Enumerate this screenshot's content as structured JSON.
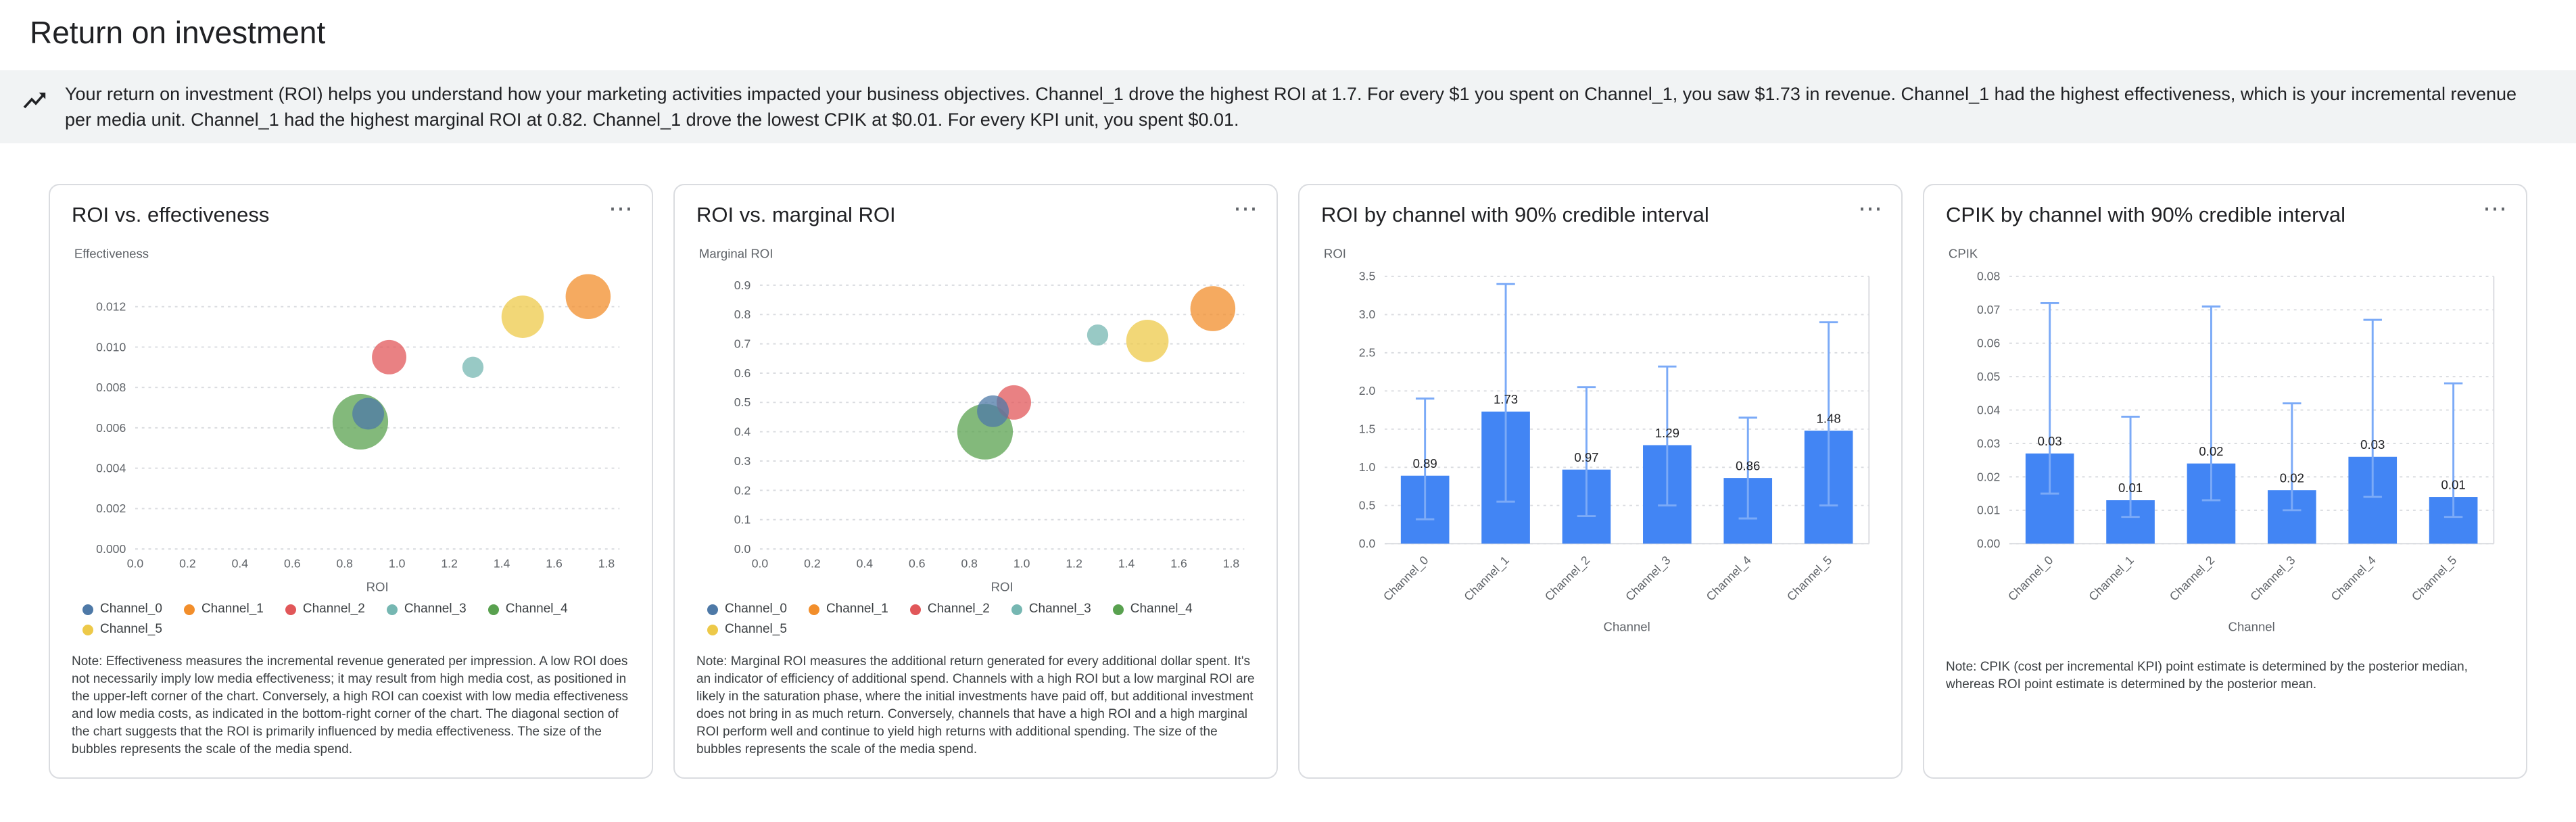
{
  "page": {
    "title": "Return on investment"
  },
  "icons": {
    "more": "⋯"
  },
  "insights_banner": {
    "icon": "insights-icon",
    "text": "Your return on investment (ROI) helps you understand how your marketing activities impacted your business objectives. Channel_1 drove the highest ROI at 1.7. For every $1 you spent on Channel_1, you saw $1.73 in revenue. Channel_1 had the highest effectiveness, which is your incremental revenue per media unit. Channel_1 had the highest marginal ROI at 0.82. Channel_1 drove the lowest CPIK at $0.01. For every KPI unit, you spent $0.01."
  },
  "palette": {
    "Channel_0": "#4E79A7",
    "Channel_1": "#F28E2B",
    "Channel_2": "#E15759",
    "Channel_3": "#76B7B2",
    "Channel_4": "#59A14F",
    "Channel_5": "#EDC949"
  },
  "bar_colors": {
    "bar": "#4285F4",
    "interval": "#7BAAF7"
  },
  "chart_data": [
    {
      "type": "scatter",
      "title": "ROI vs. effectiveness",
      "xlabel": "ROI",
      "ylabel": "Effectiveness",
      "xlim": [
        0,
        1.85
      ],
      "ylim": [
        0,
        0.0135
      ],
      "grid": "horizontal-dashed",
      "legend_position": "bottom",
      "xticks": [
        {
          "v": 0.0,
          "label": "0.0"
        },
        {
          "v": 0.2,
          "label": "0.2"
        },
        {
          "v": 0.4,
          "label": "0.4"
        },
        {
          "v": 0.6,
          "label": "0.6"
        },
        {
          "v": 0.8,
          "label": "0.8"
        },
        {
          "v": 1.0,
          "label": "1.0"
        },
        {
          "v": 1.2,
          "label": "1.2"
        },
        {
          "v": 1.4,
          "label": "1.4"
        },
        {
          "v": 1.6,
          "label": "1.6"
        },
        {
          "v": 1.8,
          "label": "1.8"
        }
      ],
      "yticks": [
        {
          "v": 0.0,
          "label": "0.000"
        },
        {
          "v": 0.002,
          "label": "0.002"
        },
        {
          "v": 0.004,
          "label": "0.004"
        },
        {
          "v": 0.006,
          "label": "0.006"
        },
        {
          "v": 0.008,
          "label": "0.008"
        },
        {
          "v": 0.01,
          "label": "0.010"
        },
        {
          "v": 0.012,
          "label": "0.012"
        }
      ],
      "points": [
        {
          "name": "Channel_0",
          "x": 0.89,
          "y": 0.0067,
          "size": 12
        },
        {
          "name": "Channel_1",
          "x": 1.73,
          "y": 0.0125,
          "size": 17
        },
        {
          "name": "Channel_2",
          "x": 0.97,
          "y": 0.0095,
          "size": 13
        },
        {
          "name": "Channel_3",
          "x": 1.29,
          "y": 0.009,
          "size": 8
        },
        {
          "name": "Channel_4",
          "x": 0.86,
          "y": 0.0063,
          "size": 21
        },
        {
          "name": "Channel_5",
          "x": 1.48,
          "y": 0.0115,
          "size": 16
        }
      ],
      "legend": [
        "Channel_0",
        "Channel_1",
        "Channel_2",
        "Channel_3",
        "Channel_4",
        "Channel_5"
      ],
      "note": "Note: Effectiveness measures the incremental revenue generated per impression. A low ROI does not necessarily imply low media effectiveness; it may result from high media cost, as positioned in the upper-left corner of the chart. Conversely, a high ROI can coexist with low media effectiveness and low media costs, as indicated in the bottom-right corner of the chart. The diagonal section of the chart suggests that the ROI is primarily influenced by media effectiveness. The size of the bubbles represents the scale of the media spend."
    },
    {
      "type": "scatter",
      "title": "ROI vs. marginal ROI",
      "xlabel": "ROI",
      "ylabel": "Marginal ROI",
      "xlim": [
        0,
        1.85
      ],
      "ylim": [
        0,
        0.93
      ],
      "grid": "horizontal-dashed",
      "legend_position": "bottom",
      "xticks": [
        {
          "v": 0.0,
          "label": "0.0"
        },
        {
          "v": 0.2,
          "label": "0.2"
        },
        {
          "v": 0.4,
          "label": "0.4"
        },
        {
          "v": 0.6,
          "label": "0.6"
        },
        {
          "v": 0.8,
          "label": "0.8"
        },
        {
          "v": 1.0,
          "label": "1.0"
        },
        {
          "v": 1.2,
          "label": "1.2"
        },
        {
          "v": 1.4,
          "label": "1.4"
        },
        {
          "v": 1.6,
          "label": "1.6"
        },
        {
          "v": 1.8,
          "label": "1.8"
        }
      ],
      "yticks": [
        {
          "v": 0.0,
          "label": "0.0"
        },
        {
          "v": 0.1,
          "label": "0.1"
        },
        {
          "v": 0.2,
          "label": "0.2"
        },
        {
          "v": 0.3,
          "label": "0.3"
        },
        {
          "v": 0.4,
          "label": "0.4"
        },
        {
          "v": 0.5,
          "label": "0.5"
        },
        {
          "v": 0.6,
          "label": "0.6"
        },
        {
          "v": 0.7,
          "label": "0.7"
        },
        {
          "v": 0.8,
          "label": "0.8"
        },
        {
          "v": 0.9,
          "label": "0.9"
        }
      ],
      "points": [
        {
          "name": "Channel_0",
          "x": 0.89,
          "y": 0.47,
          "size": 12
        },
        {
          "name": "Channel_1",
          "x": 1.73,
          "y": 0.82,
          "size": 17
        },
        {
          "name": "Channel_2",
          "x": 0.97,
          "y": 0.5,
          "size": 13
        },
        {
          "name": "Channel_3",
          "x": 1.29,
          "y": 0.73,
          "size": 8
        },
        {
          "name": "Channel_4",
          "x": 0.86,
          "y": 0.4,
          "size": 21
        },
        {
          "name": "Channel_5",
          "x": 1.48,
          "y": 0.71,
          "size": 16
        }
      ],
      "legend": [
        "Channel_0",
        "Channel_1",
        "Channel_2",
        "Channel_3",
        "Channel_4",
        "Channel_5"
      ],
      "note": "Note: Marginal ROI measures the additional return generated for every additional dollar spent. It's an indicator of efficiency of additional spend. Channels with a high ROI but a low marginal ROI are likely in the saturation phase, where the initial investments have paid off, but additional investment does not bring in as much return. Conversely, channels that have a high ROI and a high marginal ROI perform well and continue to yield high returns with additional spending. The size of the bubbles represents the scale of the media spend."
    },
    {
      "type": "bar",
      "title": "ROI by channel with 90% credible interval",
      "xlabel": "Channel",
      "ylabel": "ROI",
      "ylim": [
        0,
        3.5
      ],
      "grid": "horizontal-dashed",
      "yticks": [
        {
          "v": 0.0,
          "label": "0.0"
        },
        {
          "v": 0.5,
          "label": "0.5"
        },
        {
          "v": 1.0,
          "label": "1.0"
        },
        {
          "v": 1.5,
          "label": "1.5"
        },
        {
          "v": 2.0,
          "label": "2.0"
        },
        {
          "v": 2.5,
          "label": "2.5"
        },
        {
          "v": 3.0,
          "label": "3.0"
        },
        {
          "v": 3.5,
          "label": "3.5"
        }
      ],
      "categories": [
        "Channel_0",
        "Channel_1",
        "Channel_2",
        "Channel_3",
        "Channel_4",
        "Channel_5"
      ],
      "values": [
        0.89,
        1.73,
        0.97,
        1.29,
        0.86,
        1.48
      ],
      "labels": [
        "0.89",
        "1.73",
        "0.97",
        "1.29",
        "0.86",
        "1.48"
      ],
      "ci_low": [
        0.32,
        0.55,
        0.36,
        0.5,
        0.33,
        0.5
      ],
      "ci_high": [
        1.9,
        3.4,
        2.05,
        2.32,
        1.65,
        2.9
      ]
    },
    {
      "type": "bar",
      "title": "CPIK by channel with 90% credible interval",
      "xlabel": "Channel",
      "ylabel": "CPIK",
      "ylim": [
        0,
        0.08
      ],
      "grid": "horizontal-dashed",
      "yticks": [
        {
          "v": 0.0,
          "label": "0.00"
        },
        {
          "v": 0.01,
          "label": "0.01"
        },
        {
          "v": 0.02,
          "label": "0.02"
        },
        {
          "v": 0.03,
          "label": "0.03"
        },
        {
          "v": 0.04,
          "label": "0.04"
        },
        {
          "v": 0.05,
          "label": "0.05"
        },
        {
          "v": 0.06,
          "label": "0.06"
        },
        {
          "v": 0.07,
          "label": "0.07"
        },
        {
          "v": 0.08,
          "label": "0.08"
        }
      ],
      "categories": [
        "Channel_0",
        "Channel_1",
        "Channel_2",
        "Channel_3",
        "Channel_4",
        "Channel_5"
      ],
      "values": [
        0.027,
        0.013,
        0.024,
        0.016,
        0.026,
        0.014
      ],
      "labels": [
        "0.03",
        "0.01",
        "0.02",
        "0.02",
        "0.03",
        "0.01"
      ],
      "ci_low": [
        0.015,
        0.008,
        0.013,
        0.01,
        0.014,
        0.008
      ],
      "ci_high": [
        0.072,
        0.038,
        0.071,
        0.042,
        0.067,
        0.048
      ],
      "note": "Note: CPIK (cost per incremental KPI) point estimate is determined by the posterior median, whereas ROI point estimate is determined by the posterior mean."
    }
  ]
}
